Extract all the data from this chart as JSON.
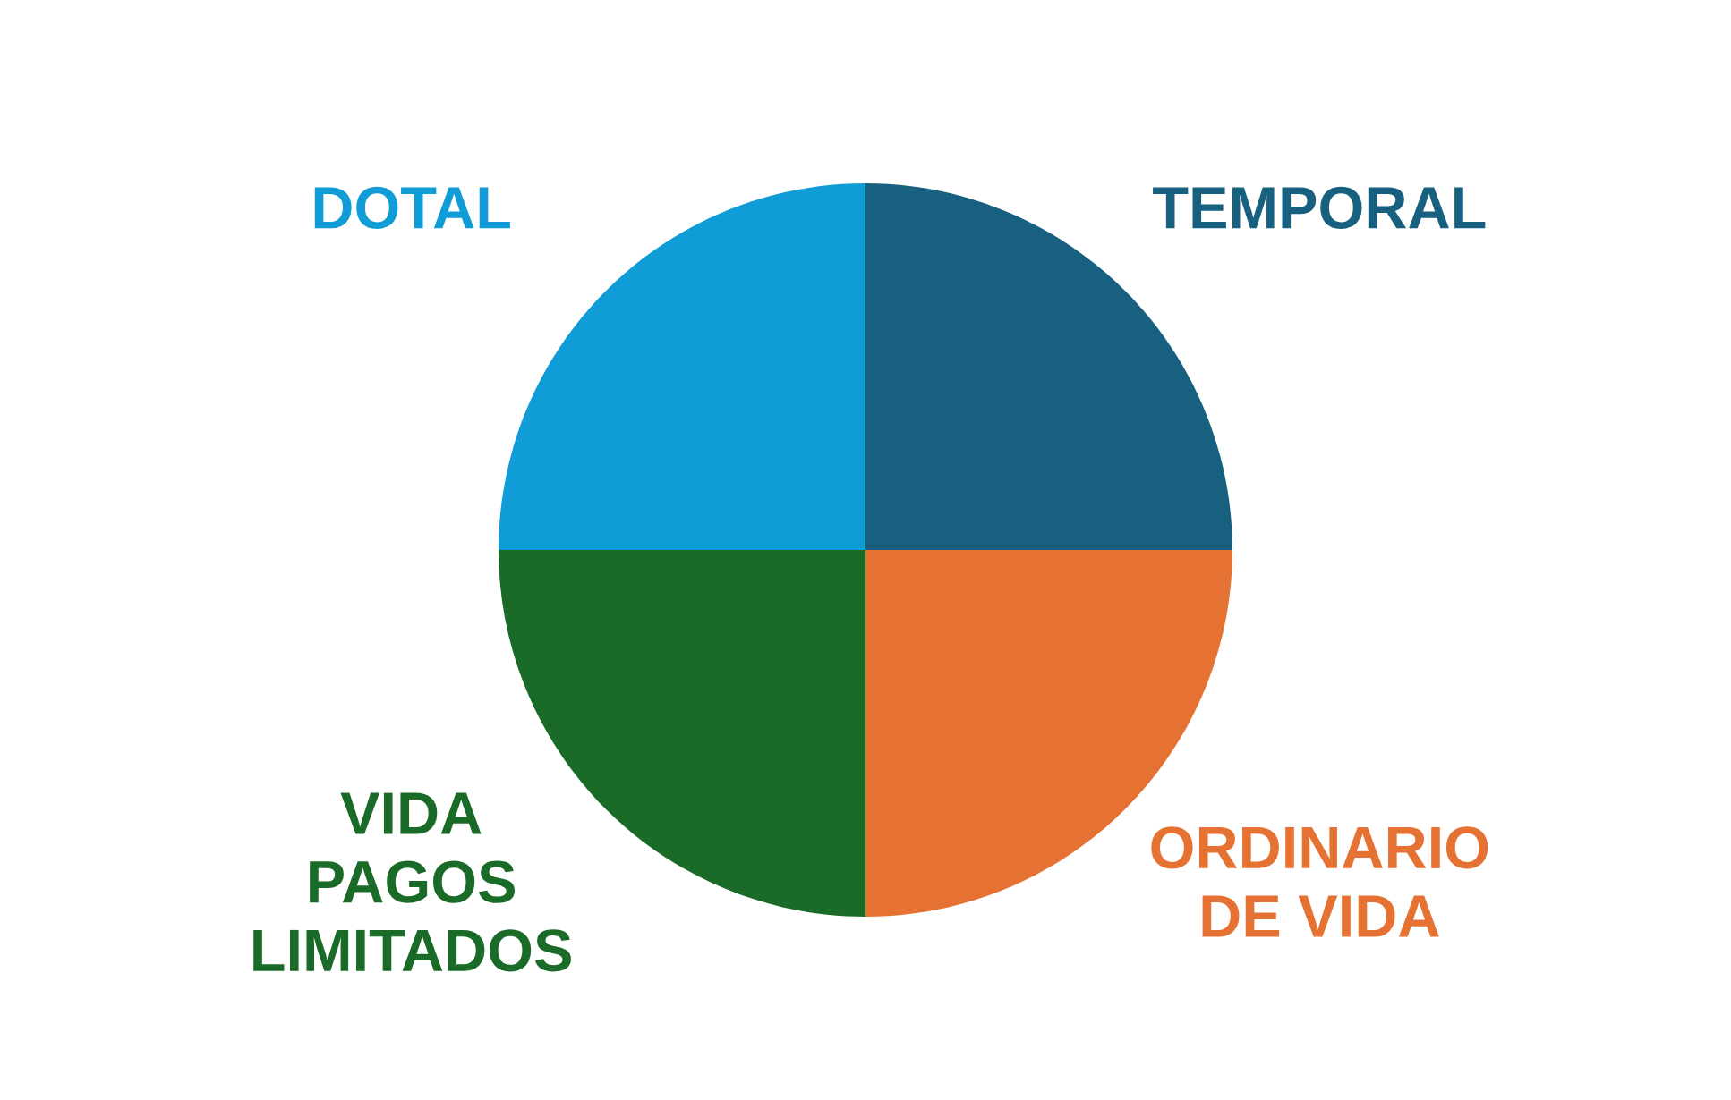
{
  "chart_data": {
    "type": "pie",
    "categories": [
      "TEMPORAL",
      "ORDINARIO\nDE VIDA",
      "VIDA\nPAGOS\nLIMITADOS",
      "DOTAL"
    ],
    "values": [
      25,
      25,
      25,
      25
    ],
    "colors": [
      "#17607f",
      "#e57132",
      "#1a6b27",
      "#109cd6"
    ]
  }
}
